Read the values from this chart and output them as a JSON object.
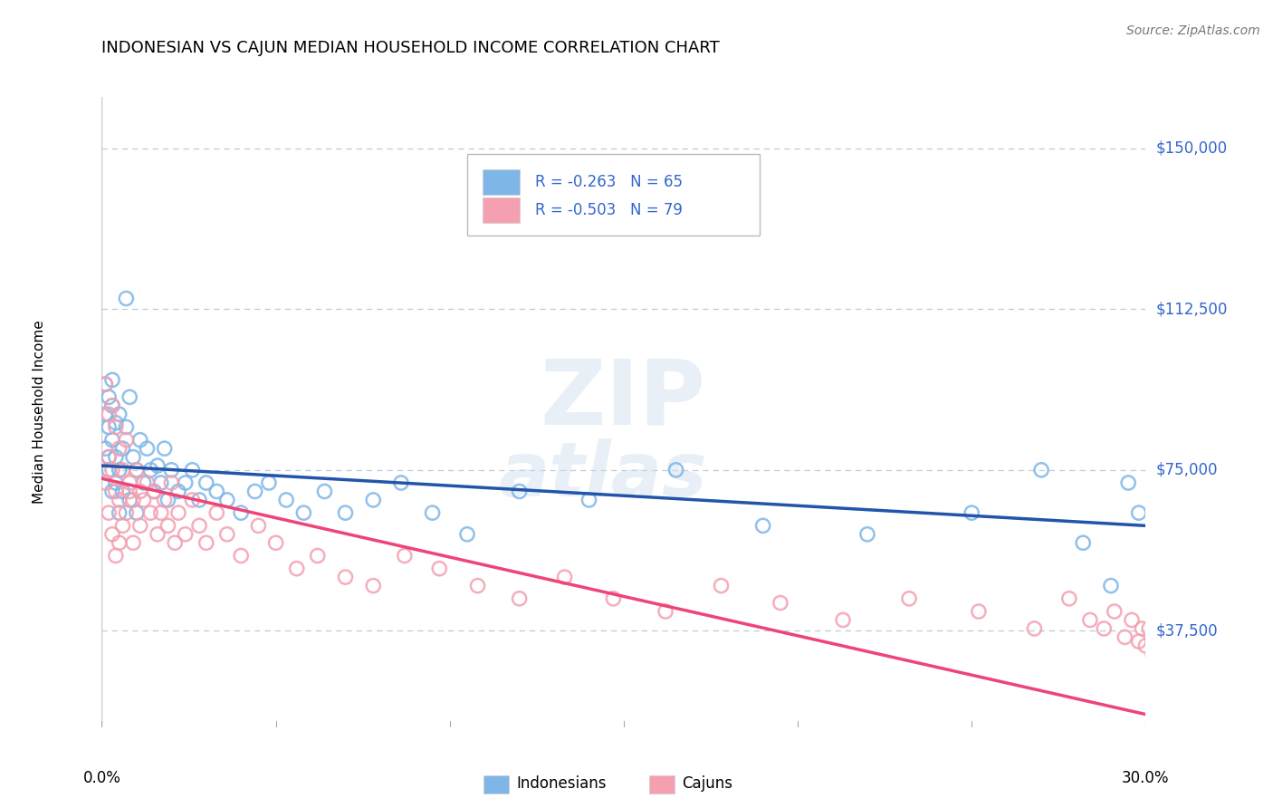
{
  "title": "INDONESIAN VS CAJUN MEDIAN HOUSEHOLD INCOME CORRELATION CHART",
  "source": "Source: ZipAtlas.com",
  "ylabel": "Median Household Income",
  "xlim": [
    0.0,
    0.3
  ],
  "ylim": [
    15000,
    162000
  ],
  "yticks": [
    37500,
    75000,
    112500,
    150000
  ],
  "ytick_labels": [
    "$37,500",
    "$75,000",
    "$112,500",
    "$150,000"
  ],
  "indonesian_R": -0.263,
  "indonesian_N": 65,
  "cajun_R": -0.503,
  "cajun_N": 79,
  "blue_color": "#7EB6E8",
  "pink_color": "#F4A0B0",
  "line_blue": "#2255AA",
  "line_pink": "#EE4477",
  "text_blue": "#3366CC",
  "grid_color": "#BBCCDD",
  "indonesian_scatter_x": [
    0.001,
    0.001,
    0.001,
    0.002,
    0.002,
    0.002,
    0.002,
    0.003,
    0.003,
    0.003,
    0.003,
    0.004,
    0.004,
    0.004,
    0.005,
    0.005,
    0.005,
    0.006,
    0.006,
    0.007,
    0.007,
    0.008,
    0.008,
    0.009,
    0.01,
    0.01,
    0.011,
    0.012,
    0.013,
    0.014,
    0.015,
    0.016,
    0.017,
    0.018,
    0.019,
    0.02,
    0.022,
    0.024,
    0.026,
    0.028,
    0.03,
    0.033,
    0.036,
    0.04,
    0.044,
    0.048,
    0.053,
    0.058,
    0.064,
    0.07,
    0.078,
    0.086,
    0.095,
    0.105,
    0.12,
    0.14,
    0.165,
    0.19,
    0.22,
    0.25,
    0.27,
    0.282,
    0.29,
    0.295,
    0.298
  ],
  "indonesian_scatter_y": [
    88000,
    80000,
    95000,
    78000,
    85000,
    92000,
    75000,
    82000,
    90000,
    70000,
    96000,
    86000,
    78000,
    72000,
    88000,
    75000,
    65000,
    80000,
    70000,
    85000,
    115000,
    92000,
    68000,
    78000,
    75000,
    65000,
    82000,
    72000,
    80000,
    75000,
    70000,
    76000,
    72000,
    80000,
    68000,
    75000,
    70000,
    72000,
    75000,
    68000,
    72000,
    70000,
    68000,
    65000,
    70000,
    72000,
    68000,
    65000,
    70000,
    65000,
    68000,
    72000,
    65000,
    60000,
    70000,
    68000,
    75000,
    62000,
    60000,
    65000,
    75000,
    58000,
    48000,
    72000,
    65000
  ],
  "cajun_scatter_x": [
    0.001,
    0.001,
    0.002,
    0.002,
    0.002,
    0.003,
    0.003,
    0.003,
    0.004,
    0.004,
    0.004,
    0.005,
    0.005,
    0.005,
    0.006,
    0.006,
    0.007,
    0.007,
    0.008,
    0.008,
    0.009,
    0.009,
    0.01,
    0.011,
    0.011,
    0.012,
    0.013,
    0.014,
    0.015,
    0.016,
    0.017,
    0.018,
    0.019,
    0.02,
    0.021,
    0.022,
    0.024,
    0.026,
    0.028,
    0.03,
    0.033,
    0.036,
    0.04,
    0.045,
    0.05,
    0.056,
    0.062,
    0.07,
    0.078,
    0.087,
    0.097,
    0.108,
    0.12,
    0.133,
    0.147,
    0.162,
    0.178,
    0.195,
    0.213,
    0.232,
    0.252,
    0.268,
    0.278,
    0.284,
    0.288,
    0.291,
    0.294,
    0.296,
    0.298,
    0.299,
    0.3,
    0.301,
    0.302,
    0.303,
    0.305,
    0.307,
    0.309,
    0.312,
    0.315
  ],
  "cajun_scatter_y": [
    95000,
    72000,
    88000,
    78000,
    65000,
    90000,
    75000,
    60000,
    85000,
    70000,
    55000,
    80000,
    68000,
    58000,
    75000,
    62000,
    82000,
    65000,
    70000,
    72000,
    68000,
    58000,
    75000,
    70000,
    62000,
    68000,
    72000,
    65000,
    70000,
    60000,
    65000,
    68000,
    62000,
    72000,
    58000,
    65000,
    60000,
    68000,
    62000,
    58000,
    65000,
    60000,
    55000,
    62000,
    58000,
    52000,
    55000,
    50000,
    48000,
    55000,
    52000,
    48000,
    45000,
    50000,
    45000,
    42000,
    48000,
    44000,
    40000,
    45000,
    42000,
    38000,
    45000,
    40000,
    38000,
    42000,
    36000,
    40000,
    35000,
    38000,
    34000,
    38000,
    32000,
    35000,
    38000,
    30000,
    34000,
    30000,
    26000
  ],
  "indo_line_x0": 0.0,
  "indo_line_y0": 76000,
  "indo_line_x1": 0.3,
  "indo_line_y1": 62000,
  "cajun_line_x0": 0.0,
  "cajun_line_y0": 73000,
  "cajun_line_x1": 0.3,
  "cajun_line_y1": 18000
}
